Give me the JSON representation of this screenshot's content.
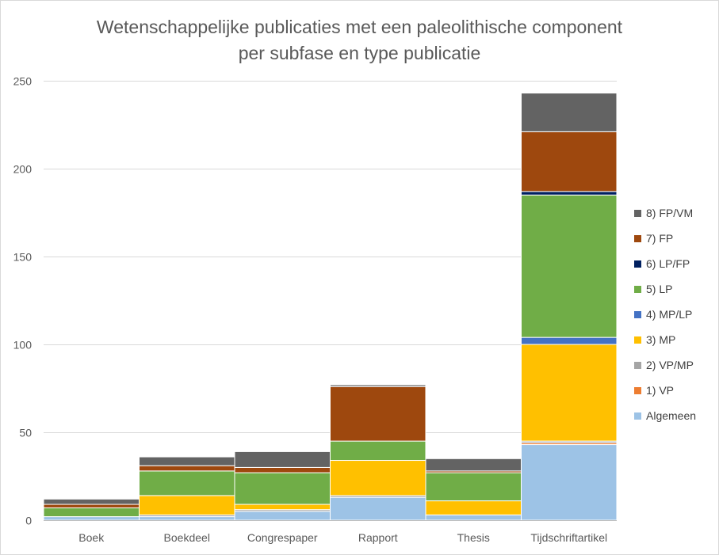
{
  "chart_data": {
    "type": "bar",
    "stacked": true,
    "title_line1": "Wetenschappelijke publicaties met een paleolithische component",
    "title_line2": "per subfase en type publicatie",
    "xlabel": "",
    "ylabel": "",
    "categories": [
      "Boek",
      "Boekdeel",
      "Congrespaper",
      "Rapport",
      "Thesis",
      "Tijdschriftartikel"
    ],
    "ylim": [
      0,
      250
    ],
    "yticks": [
      0,
      50,
      100,
      150,
      200,
      250
    ],
    "grid": true,
    "legend_position": "right",
    "series": [
      {
        "name": "Algemeen",
        "color": "#9dc3e6",
        "values": [
          2,
          2,
          5,
          13,
          3,
          43
        ]
      },
      {
        "name": "1) VP",
        "color": "#ed7d31",
        "values": [
          0,
          0,
          0,
          0,
          0,
          1
        ]
      },
      {
        "name": "2) VP/MP",
        "color": "#a5a5a5",
        "values": [
          0,
          1,
          1,
          1,
          0,
          1
        ]
      },
      {
        "name": "3) MP",
        "color": "#ffc000",
        "values": [
          0,
          11,
          3,
          20,
          8,
          55
        ]
      },
      {
        "name": "4) MP/LP",
        "color": "#4472c4",
        "values": [
          0,
          0,
          0,
          0,
          0,
          4
        ]
      },
      {
        "name": "5) LP",
        "color": "#70ad47",
        "values": [
          5,
          14,
          18,
          11,
          16,
          81
        ]
      },
      {
        "name": "6) LP/FP",
        "color": "#002060",
        "values": [
          0,
          0,
          0,
          0,
          0,
          2
        ]
      },
      {
        "name": "7) FP",
        "color": "#9e480e",
        "values": [
          2,
          3,
          3,
          31,
          1,
          34
        ]
      },
      {
        "name": "8) FP/VM",
        "color": "#636363",
        "values": [
          3,
          5,
          9,
          1,
          7,
          22
        ]
      }
    ]
  }
}
